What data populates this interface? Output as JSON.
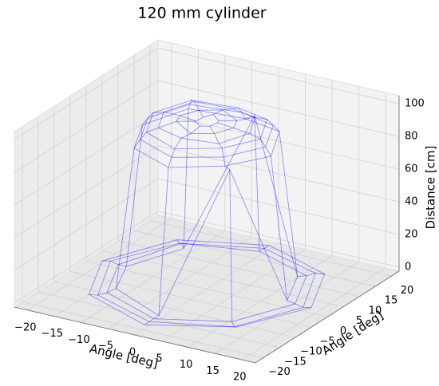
{
  "chart_data": {
    "type": "wireframe",
    "title": "120 mm cylinder",
    "xlabel": "Angle [deg]",
    "ylabel": "Angle [deg]",
    "zlabel": "Distance [cm]",
    "color": "#0000ff",
    "r": [
      2,
      5,
      8,
      10,
      11,
      12,
      15,
      16.5,
      18,
      19.5
    ],
    "theta": [
      0,
      45,
      90,
      135,
      180,
      225,
      270,
      315
    ],
    "z": [
      [
        101,
        100,
        102,
        100,
        99,
        101,
        100,
        100
      ],
      [
        100,
        99,
        101,
        100,
        100,
        102,
        99,
        100
      ],
      [
        99,
        100,
        98,
        101,
        100,
        99,
        100,
        98
      ],
      [
        97,
        98,
        96,
        99,
        98,
        97,
        96,
        98
      ],
      [
        93,
        94,
        92,
        95,
        94,
        93,
        92,
        94
      ],
      [
        88,
        90,
        87,
        91,
        89,
        88,
        87,
        90
      ],
      [
        2,
        0,
        85,
        1,
        0,
        3,
        0,
        92
      ],
      [
        1,
        0,
        0,
        2,
        0,
        1,
        0,
        1
      ],
      [
        0,
        1,
        0,
        0,
        1,
        0,
        0,
        0
      ],
      [
        1,
        0,
        0,
        0,
        0,
        1,
        0,
        2
      ]
    ],
    "xlim": [
      -22.5,
      22.5
    ],
    "ylim": [
      -22.5,
      22.5
    ],
    "zlim": [
      -2.5,
      105
    ],
    "xticks": [
      {
        "value": -20,
        "label": "−20"
      },
      {
        "value": -15,
        "label": "−15"
      },
      {
        "value": -10,
        "label": "−10"
      },
      {
        "value": -5,
        "label": "−5"
      },
      0,
      5,
      10,
      15,
      20
    ],
    "yticks": [
      {
        "value": -20,
        "label": "−20"
      },
      {
        "value": -15,
        "label": "−15"
      },
      {
        "value": -10,
        "label": "−10"
      },
      {
        "value": -5,
        "label": "−5"
      },
      0,
      5,
      10,
      15,
      20
    ],
    "zticks": [
      0,
      20,
      40,
      60,
      80,
      100
    ],
    "grid": true
  }
}
